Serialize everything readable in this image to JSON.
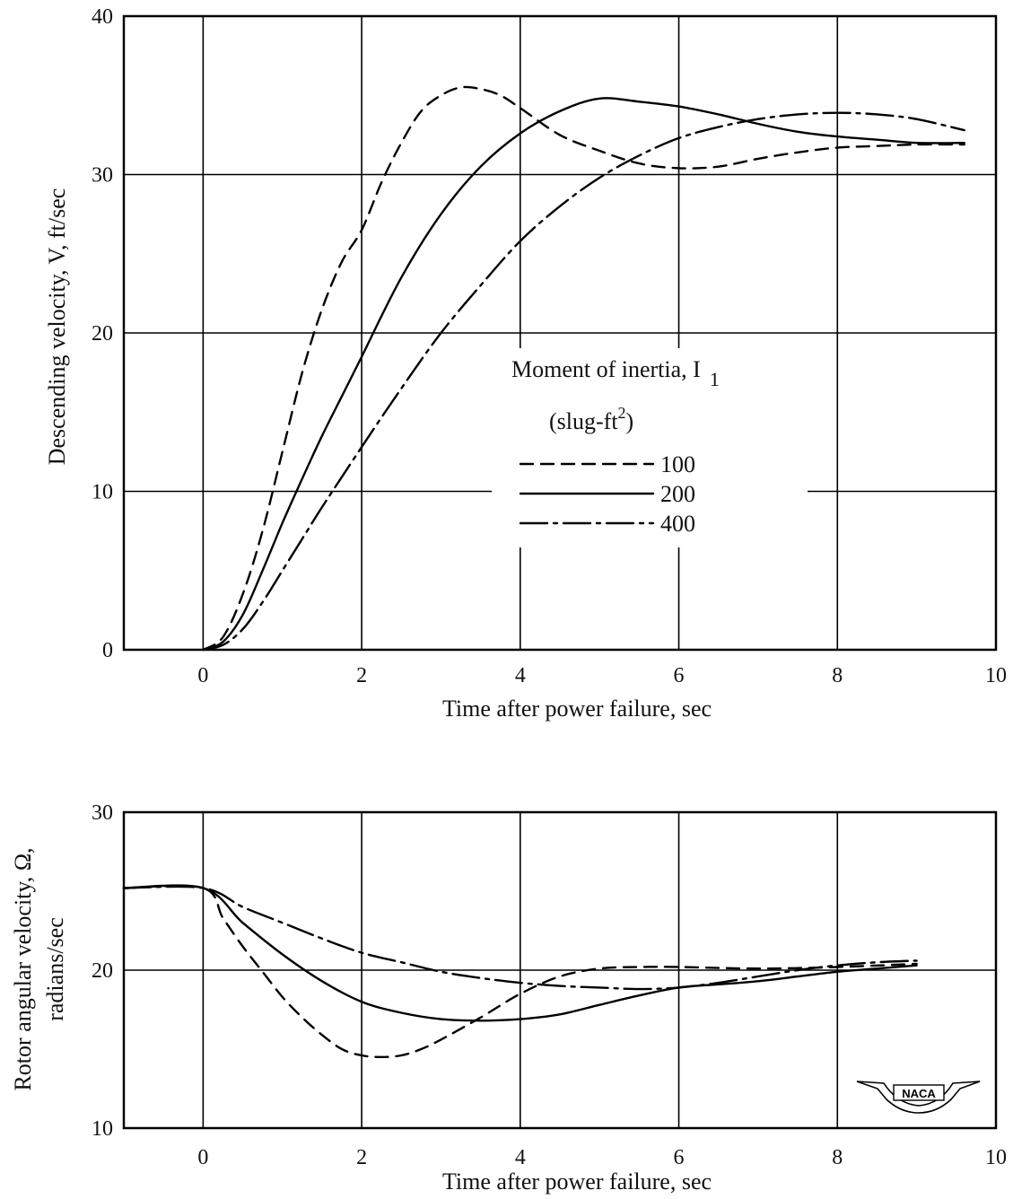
{
  "chart_data": [
    {
      "type": "line",
      "title": "",
      "xlabel": "Time after power failure, sec",
      "ylabel": "Descending velocity, V, ft/sec",
      "xlim": [
        -1,
        10
      ],
      "ylim": [
        0,
        40
      ],
      "xticks": [
        "0",
        "2",
        "4",
        "6",
        "8",
        "10"
      ],
      "yticks": [
        "0",
        "10",
        "20",
        "30",
        "40"
      ],
      "grid": true,
      "legend": {
        "title": "Moment of inertia, I",
        "title_subscript": "1",
        "units_prefix": "(slug-ft",
        "units_superscript": "2",
        "units_suffix": ")",
        "placement": "center-right"
      },
      "series": [
        {
          "name": "100",
          "style": "dashed",
          "x": [
            0,
            0.25,
            0.5,
            0.75,
            1.0,
            1.25,
            1.5,
            1.75,
            2.0,
            2.25,
            2.5,
            2.75,
            3.0,
            3.25,
            3.5,
            3.75,
            4.0,
            4.5,
            5.0,
            5.5,
            6.0,
            6.5,
            7.0,
            7.5,
            8.0,
            8.5,
            9.0,
            9.6
          ],
          "y": [
            0,
            0.8,
            3.5,
            7.5,
            12.5,
            17.5,
            21.5,
            24.5,
            26.5,
            29.5,
            32.0,
            34.0,
            35.0,
            35.5,
            35.4,
            35.0,
            34.2,
            32.5,
            31.5,
            30.7,
            30.4,
            30.5,
            31.0,
            31.4,
            31.7,
            31.8,
            31.9,
            31.9
          ]
        },
        {
          "name": "200",
          "style": "solid",
          "x": [
            0,
            0.25,
            0.5,
            0.75,
            1.0,
            1.25,
            1.5,
            1.75,
            2.0,
            2.5,
            3.0,
            3.5,
            4.0,
            4.5,
            5.0,
            5.5,
            6.0,
            6.5,
            7.0,
            7.5,
            8.0,
            8.5,
            9.0,
            9.6
          ],
          "y": [
            0,
            0.5,
            2.2,
            5.0,
            8.0,
            10.8,
            13.5,
            16.0,
            18.5,
            23.5,
            27.5,
            30.5,
            32.6,
            34.0,
            34.8,
            34.6,
            34.3,
            33.8,
            33.2,
            32.7,
            32.4,
            32.2,
            32.0,
            32.0
          ]
        },
        {
          "name": "400",
          "style": "dash-dot",
          "x": [
            0,
            0.25,
            0.5,
            0.75,
            1.0,
            1.25,
            1.5,
            2.0,
            2.5,
            3.0,
            3.5,
            4.0,
            4.5,
            5.0,
            5.5,
            6.0,
            6.5,
            7.0,
            7.5,
            8.0,
            8.5,
            9.0,
            9.6
          ],
          "y": [
            0,
            0.3,
            1.3,
            3.0,
            5.0,
            7.0,
            9.0,
            12.8,
            16.5,
            20.0,
            23.0,
            25.8,
            28.0,
            29.8,
            31.2,
            32.3,
            33.0,
            33.5,
            33.8,
            33.9,
            33.8,
            33.5,
            32.8
          ]
        }
      ]
    },
    {
      "type": "line",
      "title": "",
      "xlabel": "Time after power failure, sec",
      "ylabel": "Rotor angular velocity, Ω, radians/sec",
      "ylabel_line1": "Rotor angular velocity, Ω,",
      "ylabel_line2": "radians/sec",
      "xlim": [
        -1,
        10
      ],
      "ylim": [
        10,
        30
      ],
      "xticks": [
        "0",
        "2",
        "4",
        "6",
        "8",
        "10"
      ],
      "yticks": [
        "10",
        "20",
        "30"
      ],
      "grid": true,
      "series": [
        {
          "name": "100",
          "style": "dashed",
          "x": [
            -1,
            0,
            0.25,
            0.5,
            0.75,
            1.0,
            1.25,
            1.5,
            1.75,
            2.0,
            2.25,
            2.5,
            2.75,
            3.0,
            3.5,
            4.0,
            4.5,
            5.0,
            5.5,
            6.0,
            7.0,
            8.0,
            9.0
          ],
          "y": [
            25.2,
            25.2,
            23.3,
            21.5,
            19.9,
            18.3,
            17.0,
            15.9,
            15.0,
            14.6,
            14.5,
            14.6,
            15.0,
            15.6,
            17.0,
            18.5,
            19.6,
            20.1,
            20.2,
            20.2,
            20.1,
            20.2,
            20.4
          ]
        },
        {
          "name": "200",
          "style": "solid",
          "x": [
            -1,
            0,
            0.5,
            1.0,
            1.5,
            2.0,
            2.5,
            3.0,
            3.5,
            4.0,
            4.5,
            5.0,
            5.5,
            6.0,
            6.5,
            7.0,
            7.5,
            8.0,
            8.5,
            9.0
          ],
          "y": [
            25.2,
            25.2,
            23.0,
            21.0,
            19.3,
            18.0,
            17.3,
            16.9,
            16.8,
            16.9,
            17.2,
            17.8,
            18.4,
            18.9,
            19.1,
            19.3,
            19.6,
            19.9,
            20.1,
            20.3
          ]
        },
        {
          "name": "400",
          "style": "dash-dot",
          "x": [
            -1,
            0,
            0.5,
            1.0,
            1.5,
            2.0,
            2.5,
            3.0,
            3.5,
            4.0,
            4.5,
            5.0,
            5.5,
            6.0,
            6.5,
            7.0,
            7.5,
            8.0,
            8.5,
            9.0
          ],
          "y": [
            25.2,
            25.2,
            24.0,
            23.0,
            22.0,
            21.1,
            20.5,
            19.9,
            19.5,
            19.2,
            19.0,
            18.9,
            18.8,
            18.9,
            19.2,
            19.6,
            20.0,
            20.3,
            20.5,
            20.6
          ]
        }
      ]
    }
  ],
  "logo": {
    "text": "NACA"
  }
}
